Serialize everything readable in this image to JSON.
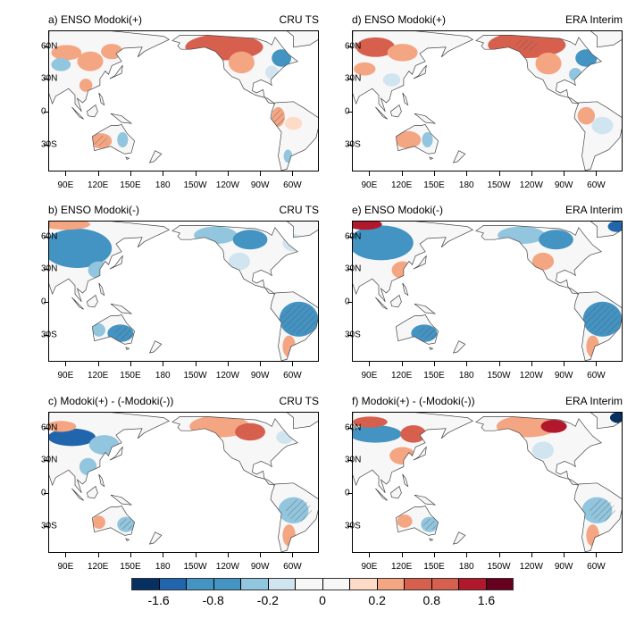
{
  "panels": [
    {
      "id": "a",
      "title": "a) ENSO Modoki(+)",
      "source": "CRU TS"
    },
    {
      "id": "b",
      "title": "b) ENSO Modoki(-)",
      "source": "CRU TS"
    },
    {
      "id": "c",
      "title": "c) Modoki(+) - (-Modoki(-))",
      "source": "CRU TS"
    },
    {
      "id": "d",
      "title": "d) ENSO Modoki(+)",
      "source": "ERA Interim"
    },
    {
      "id": "e",
      "title": "e) ENSO Modoki(-)",
      "source": "ERA Interim"
    },
    {
      "id": "f",
      "title": "f) Modoki(+) - (-Modoki(-))",
      "source": "ERA Interim"
    }
  ],
  "lat_ticks": [
    "60N",
    "30N",
    "0",
    "30S"
  ],
  "lon_ticks": [
    "90E",
    "120E",
    "150E",
    "180",
    "150W",
    "120W",
    "90W",
    "60W"
  ],
  "colorbar": {
    "colors": [
      "#053061",
      "#2166ac",
      "#4393c3",
      "#4393c3",
      "#92c5de",
      "#d1e5f0",
      "#f7f7f7",
      "#f7f7f7",
      "#fddbc7",
      "#f4a582",
      "#d6604d",
      "#d6604d",
      "#b2182b",
      "#67001f"
    ],
    "labels": [
      "-1.6",
      "-0.8",
      "-0.2",
      "0",
      "0.2",
      "0.8",
      "1.6"
    ]
  }
}
